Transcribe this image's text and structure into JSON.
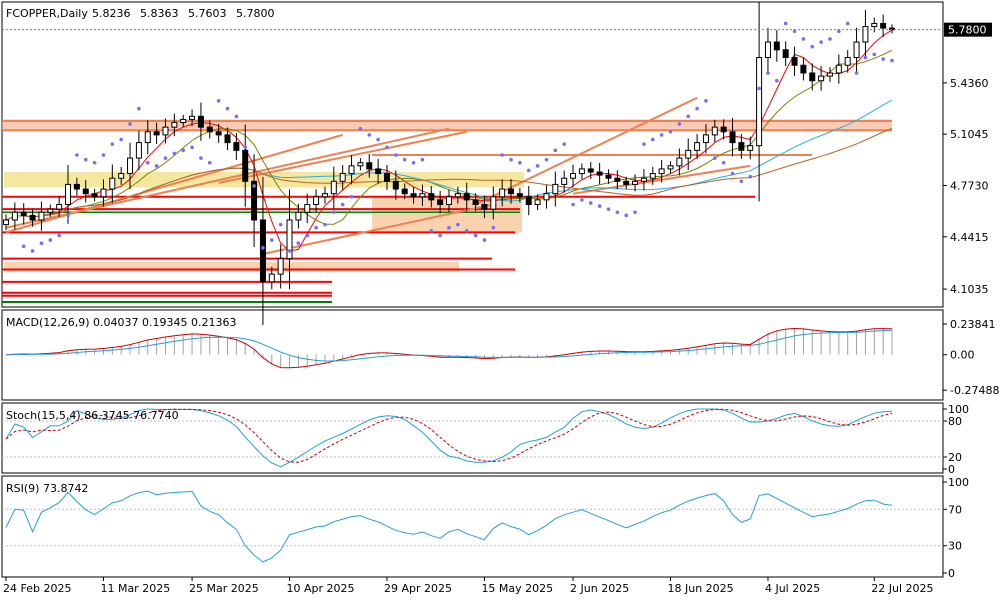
{
  "chart_data": {
    "type": "candlestick",
    "symbol_label": "FCOPPER,Daily",
    "ohlc_header": [
      "5.8236",
      "5.8363",
      "5.7603",
      "5.7800"
    ],
    "last_price_label": "5.7800",
    "price_axis": {
      "ticks": [
        "5.4360",
        "5.1045",
        "4.7730",
        "4.4415",
        "4.1035"
      ],
      "tick_values": [
        5.436,
        5.1045,
        4.773,
        4.4415,
        4.1035
      ],
      "range": [
        4.02,
        5.92
      ]
    },
    "date_labels": [
      "24 Feb 2025",
      "11 Mar 2025",
      "25 Mar 2025",
      "10 Apr 2025",
      "29 Apr 2025",
      "15 May 2025",
      "2 Jun 2025",
      "18 Jun 2025",
      "4 Jul 2025",
      "22 Jul 2025"
    ],
    "date_label_bar_index": [
      0,
      11,
      21,
      32,
      43,
      54,
      64,
      75,
      86,
      98
    ],
    "bar_count": 101,
    "closes": [
      4.55,
      4.6,
      4.58,
      4.55,
      4.6,
      4.62,
      4.65,
      4.78,
      4.75,
      4.72,
      4.7,
      4.75,
      4.82,
      4.85,
      4.95,
      5.05,
      5.12,
      5.1,
      5.15,
      5.18,
      5.2,
      5.22,
      5.15,
      5.12,
      5.1,
      5.05,
      5.0,
      4.8,
      4.55,
      4.15,
      4.2,
      4.3,
      4.55,
      4.6,
      4.65,
      4.7,
      4.72,
      4.8,
      4.85,
      4.9,
      4.92,
      4.88,
      4.85,
      4.8,
      4.75,
      4.72,
      4.7,
      4.72,
      4.68,
      4.65,
      4.7,
      4.72,
      4.68,
      4.65,
      4.62,
      4.7,
      4.75,
      4.72,
      4.7,
      4.65,
      4.68,
      4.72,
      4.78,
      4.82,
      4.85,
      4.88,
      4.86,
      4.84,
      4.82,
      4.8,
      4.78,
      4.8,
      4.82,
      4.85,
      4.88,
      4.9,
      4.95,
      5.0,
      5.05,
      5.1,
      5.15,
      5.12,
      5.05,
      5.0,
      5.03,
      5.6,
      5.7,
      5.65,
      5.6,
      5.55,
      5.5,
      5.45,
      5.48,
      5.5,
      5.55,
      5.6,
      5.7,
      5.8,
      5.82,
      5.79,
      5.78
    ],
    "moving_averages": [
      {
        "color": "#ff0000",
        "period": "fast"
      },
      {
        "color": "#808000",
        "period": "mid"
      },
      {
        "color": "#20b0e0",
        "period": "slow"
      },
      {
        "color": "#c06020",
        "period": "long"
      }
    ],
    "macd": {
      "label": "MACD(12,26,9) 0.04037 0.19345 0.21363",
      "ticks": [
        "0.23841",
        "0.00",
        "-0.27488"
      ],
      "tick_values": [
        0.23841,
        0.0,
        -0.27488
      ],
      "range": [
        -0.32,
        0.3
      ]
    },
    "stoch": {
      "label": "Stoch(15,5,4) 86.3745 76.7740",
      "ticks": [
        "100",
        "80",
        "20",
        "0"
      ],
      "tick_values": [
        100,
        80,
        20,
        0
      ],
      "range": [
        0,
        100
      ]
    },
    "rsi": {
      "label": "RSI(9) 73.8742",
      "ticks": [
        "100",
        "70",
        "30",
        "0"
      ],
      "tick_values": [
        100,
        70,
        30,
        0
      ],
      "range": [
        0,
        100
      ]
    },
    "colors": {
      "bull_body": "#ffffff",
      "bear_body": "#000000",
      "sar": "#7070ff",
      "trend": "#f08050",
      "support": "#ff0000",
      "zone_yellow": "#f4e8a0",
      "zone_orange": "#fbd2b0",
      "macd_signal": "#cc0000",
      "macd_main": "#20a0e0",
      "stoch_main": "#20a0e0",
      "stoch_signal": "#cc0000",
      "rsi_line": "#20a0e0"
    }
  }
}
